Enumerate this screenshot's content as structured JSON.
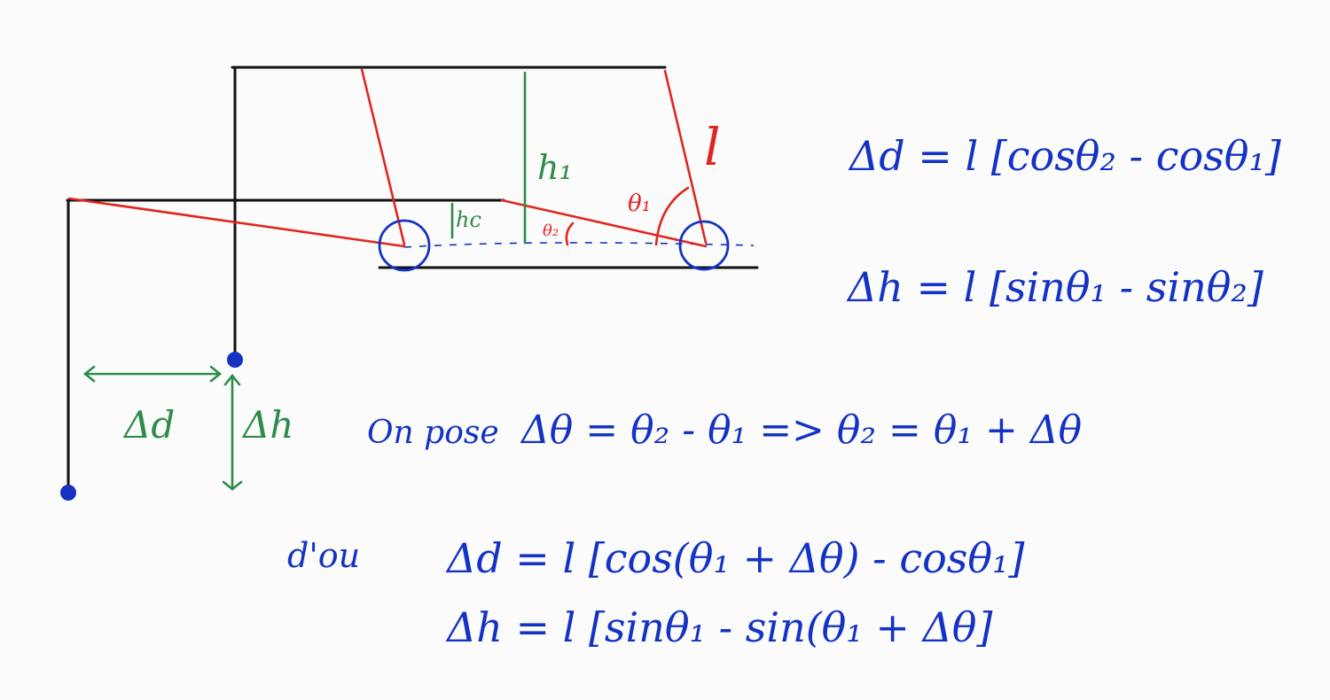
{
  "labels": {
    "h1": "h₁",
    "hc": "hᴄ",
    "theta1": "θ₁",
    "theta2": "θ₂",
    "l": "l",
    "delta_d": "Δd",
    "delta_h": "Δh"
  },
  "equations": {
    "eq1": "Δd = l [cosθ₂ - cosθ₁]",
    "eq2": "Δh = l [sinθ₁ - sinθ₂]",
    "eq3_prefix": "On pose",
    "eq3": "Δθ = θ₂ - θ₁  =>  θ₂ = θ₁ + Δθ",
    "eq4_prefix": "d'ou",
    "eq4": "Δd = l [cos(θ₁ + Δθ) - cosθ₁]",
    "eq5": "Δh = l [sinθ₁ - sin(θ₁ + Δθ]"
  }
}
